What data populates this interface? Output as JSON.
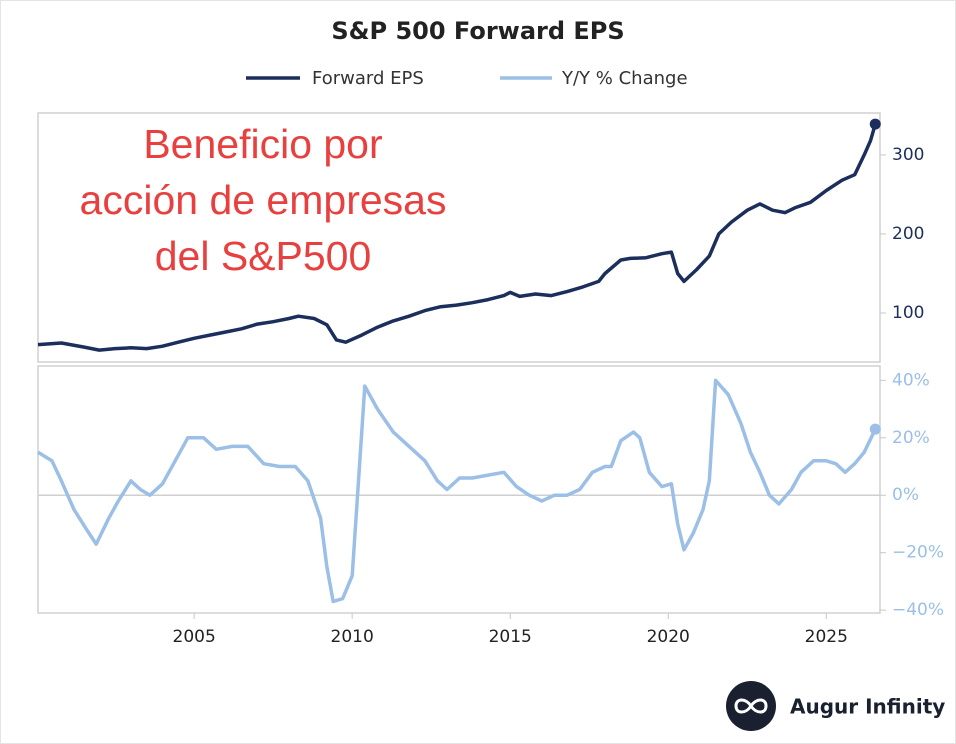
{
  "chart_data": [
    {
      "type": "line",
      "title": "S&P 500 Forward EPS",
      "annotation": [
        "Beneficio por",
        "acción de empresas",
        "del S&P500"
      ],
      "x": [
        2000.06,
        2000.8,
        2001.5,
        2002.0,
        2002.5,
        2003.0,
        2003.5,
        2004.0,
        2004.5,
        2005.0,
        2005.5,
        2006.0,
        2006.5,
        2007.0,
        2007.5,
        2008.0,
        2008.3,
        2008.8,
        2009.2,
        2009.5,
        2009.8,
        2010.3,
        2010.8,
        2011.3,
        2011.8,
        2012.3,
        2012.8,
        2013.3,
        2013.8,
        2014.3,
        2014.8,
        2015.0,
        2015.3,
        2015.8,
        2016.3,
        2016.8,
        2017.3,
        2017.8,
        2018.0,
        2018.5,
        2018.8,
        2019.3,
        2019.8,
        2020.1,
        2020.3,
        2020.5,
        2020.9,
        2021.3,
        2021.6,
        2022.0,
        2022.5,
        2022.9,
        2023.3,
        2023.7,
        2024.0,
        2024.5,
        2025.0,
        2025.5,
        2025.9,
        2026.2,
        2026.4,
        2026.55
      ],
      "series": [
        {
          "name": "Forward EPS",
          "color": "#1c2f5c",
          "values": [
            60,
            62,
            57,
            53,
            55,
            56,
            55,
            58,
            63,
            68,
            72,
            76,
            80,
            86,
            89,
            93,
            96,
            93,
            85,
            66,
            63,
            72,
            82,
            90,
            96,
            103,
            108,
            110,
            113,
            117,
            122,
            126,
            121,
            124,
            122,
            127,
            133,
            140,
            150,
            167,
            169,
            170,
            175,
            177,
            150,
            140,
            155,
            172,
            200,
            215,
            230,
            238,
            230,
            227,
            233,
            240,
            255,
            268,
            275,
            300,
            318,
            339
          ]
        }
      ],
      "xlim": [
        2000.06,
        2026.7
      ],
      "ylim": [
        38,
        353
      ],
      "yticks": [
        100,
        200,
        300
      ],
      "yaxis_side": "right",
      "end_marker": true
    },
    {
      "type": "line",
      "x": [
        2000.06,
        2000.5,
        2000.8,
        2001.2,
        2001.6,
        2001.9,
        2002.3,
        2002.6,
        2003.0,
        2003.3,
        2003.6,
        2004.0,
        2004.4,
        2004.8,
        2005.3,
        2005.7,
        2006.2,
        2006.7,
        2007.2,
        2007.7,
        2008.2,
        2008.6,
        2009.0,
        2009.2,
        2009.4,
        2009.7,
        2010.0,
        2010.2,
        2010.4,
        2010.8,
        2011.3,
        2011.8,
        2012.3,
        2012.7,
        2013.0,
        2013.4,
        2013.8,
        2014.3,
        2014.8,
        2015.2,
        2015.6,
        2016.0,
        2016.4,
        2016.8,
        2017.2,
        2017.6,
        2018.0,
        2018.2,
        2018.5,
        2018.9,
        2019.1,
        2019.4,
        2019.8,
        2020.1,
        2020.3,
        2020.5,
        2020.8,
        2021.1,
        2021.3,
        2021.5,
        2021.9,
        2022.3,
        2022.6,
        2022.9,
        2023.2,
        2023.5,
        2023.9,
        2024.2,
        2024.6,
        2025.0,
        2025.3,
        2025.6,
        2025.9,
        2026.2,
        2026.55
      ],
      "series": [
        {
          "name": "Y/Y % Change",
          "color": "#9bbfe6",
          "values": [
            15,
            12,
            5,
            -5,
            -12,
            -17,
            -8,
            -2,
            5,
            2,
            0,
            4,
            12,
            20,
            20,
            16,
            17,
            17,
            11,
            10,
            10,
            5,
            -8,
            -25,
            -37,
            -36,
            -28,
            5,
            38,
            30,
            22,
            17,
            12,
            5,
            2,
            6,
            6,
            7,
            8,
            3,
            0,
            -2,
            0,
            0,
            2,
            8,
            10,
            10,
            19,
            22,
            20,
            8,
            3,
            4,
            -10,
            -19,
            -13,
            -5,
            5,
            40,
            35,
            25,
            15,
            8,
            0,
            -3,
            2,
            8,
            12,
            12,
            11,
            8,
            11,
            15,
            23
          ]
        }
      ],
      "xlim": [
        2000.06,
        2026.7
      ],
      "ylim": [
        -41,
        45
      ],
      "xticks": [
        2005,
        2010,
        2015,
        2020,
        2025
      ],
      "yticks": [
        {
          "value": -40,
          "label": "−40%"
        },
        {
          "value": -20,
          "label": "−20%"
        },
        {
          "value": 0,
          "label": "0%"
        },
        {
          "value": 20,
          "label": "20%"
        },
        {
          "value": 40,
          "label": "40%"
        }
      ],
      "yaxis_side": "right",
      "hline": 0,
      "end_marker": true
    }
  ],
  "logo": "Augur Infinity"
}
